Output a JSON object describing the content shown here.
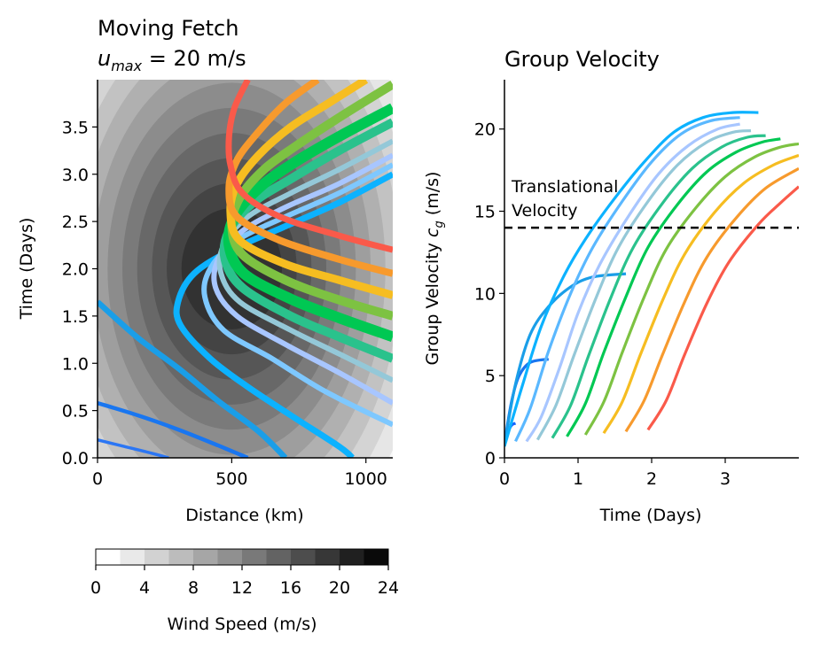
{
  "chart_data": [
    {
      "type": "line",
      "panel": "left",
      "title_line1": "Moving Fetch",
      "title_line2_var": "u",
      "title_line2_sub": "max",
      "title_line2_rest": " = 20 m/s",
      "xlabel": "Distance (km)",
      "ylabel": "Time (Days)",
      "xlim": [
        0,
        1100
      ],
      "ylim": [
        0,
        4.0
      ],
      "xticks": [
        0,
        500,
        1000
      ],
      "yticks": [
        0.0,
        0.5,
        1.0,
        1.5,
        2.0,
        2.5,
        3.0,
        3.5
      ],
      "ytick_labels": [
        "0.0",
        "0.5",
        "1.0",
        "1.5",
        "2.0",
        "2.5",
        "3.0",
        "3.5"
      ],
      "background": "filled contours of wind speed, max centered near 500 km, 2.0 days",
      "series": [
        {
          "color": "#2b76f4",
          "width": 3.5,
          "points": [
            [
              0,
              0.19
            ],
            [
              100,
              0.12
            ],
            [
              200,
              0.05
            ],
            [
              265,
              0
            ]
          ]
        },
        {
          "color": "#1976f0",
          "width": 4.5,
          "points": [
            [
              0,
              0.58
            ],
            [
              150,
              0.45
            ],
            [
              300,
              0.3
            ],
            [
              450,
              0.13
            ],
            [
              560,
              0
            ]
          ]
        },
        {
          "color": "#1a9ee8",
          "width": 6.5,
          "points": [
            [
              0,
              1.65
            ],
            [
              150,
              1.27
            ],
            [
              300,
              0.95
            ],
            [
              450,
              0.6
            ],
            [
              600,
              0.28
            ],
            [
              700,
              0
            ]
          ]
        },
        {
          "color": "#0cb2ff",
          "width": 7,
          "points": [
            [
              1100,
              3.0
            ],
            [
              900,
              2.7
            ],
            [
              700,
              2.45
            ],
            [
              500,
              2.2
            ],
            [
              360,
              1.95
            ],
            [
              300,
              1.65
            ],
            [
              310,
              1.4
            ],
            [
              420,
              1.05
            ],
            [
              560,
              0.75
            ],
            [
              720,
              0.45
            ],
            [
              900,
              0.12
            ],
            [
              950,
              0
            ]
          ]
        },
        {
          "color": "#7ec8ff",
          "width": 6,
          "points": [
            [
              1100,
              3.1
            ],
            [
              900,
              2.8
            ],
            [
              700,
              2.55
            ],
            [
              520,
              2.3
            ],
            [
              420,
              2.0
            ],
            [
              400,
              1.7
            ],
            [
              470,
              1.35
            ],
            [
              650,
              1.05
            ],
            [
              850,
              0.7
            ],
            [
              1100,
              0.35
            ]
          ]
        },
        {
          "color": "#a8c6ff",
          "width": 6,
          "points": [
            [
              1100,
              3.2
            ],
            [
              900,
              2.9
            ],
            [
              700,
              2.65
            ],
            [
              540,
              2.4
            ],
            [
              450,
              2.1
            ],
            [
              440,
              1.8
            ],
            [
              520,
              1.5
            ],
            [
              700,
              1.2
            ],
            [
              900,
              0.9
            ],
            [
              1100,
              0.58
            ]
          ]
        },
        {
          "color": "#94c8d8",
          "width": 6,
          "points": [
            [
              1100,
              3.35
            ],
            [
              900,
              3.05
            ],
            [
              720,
              2.8
            ],
            [
              560,
              2.55
            ],
            [
              470,
              2.25
            ],
            [
              460,
              1.95
            ],
            [
              530,
              1.65
            ],
            [
              720,
              1.35
            ],
            [
              900,
              1.1
            ],
            [
              1100,
              0.82
            ]
          ]
        },
        {
          "color": "#2ac28c",
          "width": 10,
          "points": [
            [
              1100,
              3.55
            ],
            [
              900,
              3.25
            ],
            [
              720,
              2.95
            ],
            [
              580,
              2.7
            ],
            [
              490,
              2.4
            ],
            [
              475,
              2.1
            ],
            [
              540,
              1.8
            ],
            [
              720,
              1.5
            ],
            [
              900,
              1.28
            ],
            [
              1100,
              1.05
            ]
          ]
        },
        {
          "color": "#00c853",
          "width": 12,
          "points": [
            [
              1100,
              3.7
            ],
            [
              900,
              3.4
            ],
            [
              720,
              3.1
            ],
            [
              600,
              2.85
            ],
            [
              510,
              2.55
            ],
            [
              490,
              2.25
            ],
            [
              545,
              1.95
            ],
            [
              720,
              1.68
            ],
            [
              900,
              1.48
            ],
            [
              1100,
              1.28
            ]
          ]
        },
        {
          "color": "#7dc242",
          "width": 10,
          "points": [
            [
              1100,
              3.95
            ],
            [
              900,
              3.6
            ],
            [
              740,
              3.3
            ],
            [
              620,
              3.05
            ],
            [
              530,
              2.75
            ],
            [
              500,
              2.45
            ],
            [
              540,
              2.15
            ],
            [
              700,
              1.88
            ],
            [
              900,
              1.67
            ],
            [
              1100,
              1.5
            ]
          ]
        },
        {
          "color": "#f6bd21",
          "width": 9,
          "points": [
            [
              1000,
              4.0
            ],
            [
              860,
              3.75
            ],
            [
              720,
              3.5
            ],
            [
              600,
              3.2
            ],
            [
              520,
              2.9
            ],
            [
              495,
              2.6
            ],
            [
              530,
              2.3
            ],
            [
              700,
              2.05
            ],
            [
              900,
              1.88
            ],
            [
              1100,
              1.72
            ]
          ]
        },
        {
          "color": "#f79a2d",
          "width": 8,
          "points": [
            [
              820,
              4.0
            ],
            [
              700,
              3.75
            ],
            [
              600,
              3.45
            ],
            [
              520,
              3.15
            ],
            [
              490,
              2.85
            ],
            [
              520,
              2.55
            ],
            [
              680,
              2.3
            ],
            [
              900,
              2.1
            ],
            [
              1100,
              1.95
            ]
          ]
        },
        {
          "color": "#fa5a4a",
          "width": 7,
          "points": [
            [
              560,
              4.0
            ],
            [
              510,
              3.7
            ],
            [
              490,
              3.4
            ],
            [
              495,
              3.1
            ],
            [
              540,
              2.8
            ],
            [
              680,
              2.55
            ],
            [
              900,
              2.35
            ],
            [
              1100,
              2.2
            ]
          ]
        }
      ],
      "colorbar": {
        "label": "Wind Speed (m/s)",
        "ticks": [
          0,
          4,
          8,
          12,
          16,
          20,
          24
        ],
        "levels": 12
      }
    },
    {
      "type": "line",
      "panel": "right",
      "title": "Group Velocity",
      "xlabel": "Time (Days)",
      "ylabel_main": "Group Velocity ",
      "ylabel_var": "c",
      "ylabel_sub": "g",
      "ylabel_unit": " (m/s)",
      "xlim": [
        0,
        4.0
      ],
      "ylim": [
        0,
        23
      ],
      "xticks": [
        0,
        1,
        2,
        3
      ],
      "yticks": [
        0,
        5,
        10,
        15,
        20
      ],
      "hline": {
        "y": 14.0,
        "style": "dashed",
        "label_line1": "Translational",
        "label_line2": "Velocity"
      },
      "series": [
        {
          "color": "#1565ff",
          "points": [
            [
              0.0,
              0.9
            ],
            [
              0.05,
              1.6
            ],
            [
              0.1,
              2.0
            ],
            [
              0.15,
              2.1
            ]
          ]
        },
        {
          "color": "#1976f0",
          "points": [
            [
              0.0,
              0.9
            ],
            [
              0.1,
              3.5
            ],
            [
              0.2,
              5.0
            ],
            [
              0.35,
              5.8
            ],
            [
              0.6,
              6.0
            ]
          ]
        },
        {
          "color": "#1a9ee8",
          "points": [
            [
              0.0,
              0.8
            ],
            [
              0.15,
              4.5
            ],
            [
              0.35,
              7.5
            ],
            [
              0.6,
              9.2
            ],
            [
              0.9,
              10.4
            ],
            [
              1.2,
              11.0
            ],
            [
              1.65,
              11.2
            ]
          ]
        },
        {
          "color": "#0cb2ff",
          "points": [
            [
              0.0,
              0.7
            ],
            [
              0.25,
              4.5
            ],
            [
              0.5,
              8.0
            ],
            [
              0.8,
              11.0
            ],
            [
              1.1,
              13.3
            ],
            [
              1.5,
              15.8
            ],
            [
              1.9,
              18.0
            ],
            [
              2.3,
              19.8
            ],
            [
              2.7,
              20.7
            ],
            [
              3.1,
              21.0
            ],
            [
              3.45,
              21.0
            ]
          ]
        },
        {
          "color": "#5ab8ff",
          "points": [
            [
              0.15,
              1.0
            ],
            [
              0.35,
              3.0
            ],
            [
              0.6,
              6.5
            ],
            [
              0.9,
              10.0
            ],
            [
              1.2,
              12.8
            ],
            [
              1.6,
              15.6
            ],
            [
              2.0,
              18.0
            ],
            [
              2.4,
              19.7
            ],
            [
              2.8,
              20.5
            ],
            [
              3.2,
              20.7
            ]
          ]
        },
        {
          "color": "#a8c6ff",
          "points": [
            [
              0.3,
              1.0
            ],
            [
              0.5,
              2.5
            ],
            [
              0.75,
              5.5
            ],
            [
              1.0,
              8.8
            ],
            [
              1.3,
              11.8
            ],
            [
              1.7,
              14.8
            ],
            [
              2.1,
              17.3
            ],
            [
              2.5,
              19.0
            ],
            [
              2.9,
              20.0
            ],
            [
              3.2,
              20.3
            ]
          ]
        },
        {
          "color": "#94c8d8",
          "points": [
            [
              0.45,
              1.1
            ],
            [
              0.7,
              3.2
            ],
            [
              0.95,
              6.3
            ],
            [
              1.25,
              9.8
            ],
            [
              1.55,
              12.8
            ],
            [
              1.95,
              15.6
            ],
            [
              2.35,
              17.8
            ],
            [
              2.75,
              19.2
            ],
            [
              3.1,
              19.8
            ],
            [
              3.35,
              19.9
            ]
          ]
        },
        {
          "color": "#2ac28c",
          "points": [
            [
              0.65,
              1.2
            ],
            [
              0.9,
              3.2
            ],
            [
              1.15,
              6.3
            ],
            [
              1.45,
              9.8
            ],
            [
              1.75,
              12.8
            ],
            [
              2.15,
              15.5
            ],
            [
              2.55,
              17.6
            ],
            [
              2.95,
              18.9
            ],
            [
              3.3,
              19.5
            ],
            [
              3.55,
              19.6
            ]
          ]
        },
        {
          "color": "#00c853",
          "points": [
            [
              0.85,
              1.3
            ],
            [
              1.1,
              3.3
            ],
            [
              1.35,
              6.4
            ],
            [
              1.65,
              9.8
            ],
            [
              1.95,
              12.8
            ],
            [
              2.35,
              15.4
            ],
            [
              2.75,
              17.4
            ],
            [
              3.15,
              18.6
            ],
            [
              3.5,
              19.2
            ],
            [
              3.75,
              19.4
            ]
          ]
        },
        {
          "color": "#7dc242",
          "points": [
            [
              1.1,
              1.4
            ],
            [
              1.35,
              3.4
            ],
            [
              1.6,
              6.4
            ],
            [
              1.9,
              9.8
            ],
            [
              2.2,
              12.7
            ],
            [
              2.6,
              15.2
            ],
            [
              3.0,
              17.1
            ],
            [
              3.4,
              18.3
            ],
            [
              3.75,
              18.9
            ],
            [
              4.0,
              19.1
            ]
          ]
        },
        {
          "color": "#f6bd21",
          "points": [
            [
              1.35,
              1.5
            ],
            [
              1.6,
              3.4
            ],
            [
              1.85,
              6.3
            ],
            [
              2.15,
              9.6
            ],
            [
              2.45,
              12.4
            ],
            [
              2.85,
              14.9
            ],
            [
              3.25,
              16.7
            ],
            [
              3.65,
              17.8
            ],
            [
              4.0,
              18.4
            ]
          ]
        },
        {
          "color": "#f79a2d",
          "points": [
            [
              1.65,
              1.6
            ],
            [
              1.9,
              3.5
            ],
            [
              2.15,
              6.3
            ],
            [
              2.45,
              9.5
            ],
            [
              2.75,
              12.2
            ],
            [
              3.15,
              14.6
            ],
            [
              3.55,
              16.4
            ],
            [
              4.0,
              17.6
            ]
          ]
        },
        {
          "color": "#fa5a4a",
          "points": [
            [
              1.95,
              1.7
            ],
            [
              2.2,
              3.5
            ],
            [
              2.45,
              6.3
            ],
            [
              2.75,
              9.4
            ],
            [
              3.05,
              11.9
            ],
            [
              3.45,
              14.2
            ],
            [
              3.75,
              15.5
            ],
            [
              4.0,
              16.5
            ]
          ]
        }
      ]
    }
  ]
}
